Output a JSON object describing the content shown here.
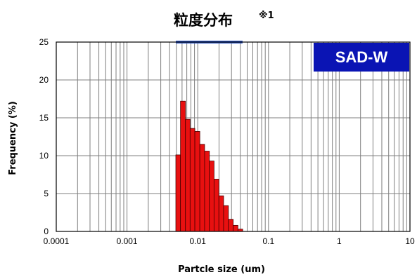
{
  "chart_data": {
    "type": "bar",
    "title": "粒度分布",
    "title_note": "※1",
    "badge": "SAD-W",
    "xlabel": "Partcle size (um)",
    "ylabel": "Frequency (%)",
    "xscale": "log",
    "xlim": [
      0.0001,
      10
    ],
    "ylim": [
      0,
      25
    ],
    "x_tick_labels": [
      "0.0001",
      "0.001",
      "0.01",
      "0.1",
      "1",
      "10"
    ],
    "x_tick_values": [
      0.0001,
      0.001,
      0.01,
      0.1,
      1,
      10
    ],
    "y_tick_labels": [
      "0",
      "5",
      "10",
      "15",
      "20",
      "25"
    ],
    "y_tick_values": [
      0,
      5,
      10,
      15,
      20,
      25
    ],
    "grid": true,
    "top_band_range": [
      0.0049,
      0.043
    ],
    "bins": [
      {
        "lower": 0.0049,
        "upper": 0.0057,
        "value": 10.1
      },
      {
        "lower": 0.0057,
        "upper": 0.0067,
        "value": 17.2
      },
      {
        "lower": 0.0067,
        "upper": 0.0078,
        "value": 14.8
      },
      {
        "lower": 0.0078,
        "upper": 0.0091,
        "value": 13.6
      },
      {
        "lower": 0.0091,
        "upper": 0.0107,
        "value": 13.2
      },
      {
        "lower": 0.0107,
        "upper": 0.0125,
        "value": 11.5
      },
      {
        "lower": 0.0125,
        "upper": 0.0146,
        "value": 10.6
      },
      {
        "lower": 0.0146,
        "upper": 0.017,
        "value": 9.3
      },
      {
        "lower": 0.017,
        "upper": 0.0199,
        "value": 6.9
      },
      {
        "lower": 0.0199,
        "upper": 0.0232,
        "value": 4.7
      },
      {
        "lower": 0.0232,
        "upper": 0.0271,
        "value": 3.4
      },
      {
        "lower": 0.0271,
        "upper": 0.0317,
        "value": 1.6
      },
      {
        "lower": 0.0317,
        "upper": 0.037,
        "value": 0.8
      },
      {
        "lower": 0.037,
        "upper": 0.0432,
        "value": 0.3
      }
    ],
    "colors": {
      "bar_fill": "#e81010",
      "bar_stroke": "#4a0000",
      "grid": "#7f7f7f",
      "badge_bg": "#0a14b4",
      "band": "#2f55c0"
    }
  }
}
